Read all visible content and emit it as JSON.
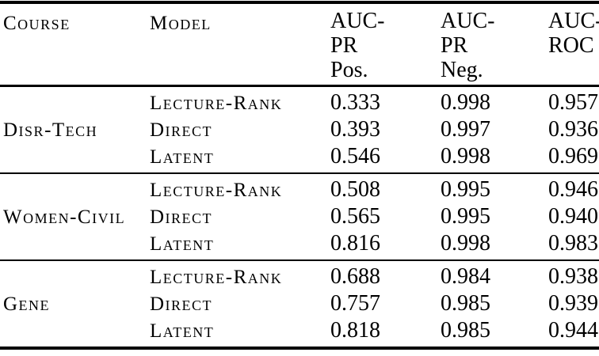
{
  "page": {
    "background": "#ffffff",
    "text_color": "#000000",
    "rule_color": "#000000"
  },
  "table": {
    "headers": {
      "course": "Course",
      "model": "Model",
      "auc_pr_pos": "AUC-\nPR\nPos.",
      "auc_pr_neg": "AUC-\nPR\nNeg.",
      "auc_roc": "AUC-\nROC"
    },
    "groups": [
      {
        "course": "Disr-Tech",
        "rows": [
          {
            "model": "Lecture-Rank",
            "auc_pr_pos": "0.333",
            "auc_pr_neg": "0.998",
            "auc_roc": "0.957"
          },
          {
            "model": "Direct",
            "auc_pr_pos": "0.393",
            "auc_pr_neg": "0.997",
            "auc_roc": "0.936"
          },
          {
            "model": "Latent",
            "auc_pr_pos": "0.546",
            "auc_pr_neg": "0.998",
            "auc_roc": "0.969"
          }
        ]
      },
      {
        "course": "Women-Civil",
        "rows": [
          {
            "model": "Lecture-Rank",
            "auc_pr_pos": "0.508",
            "auc_pr_neg": "0.995",
            "auc_roc": "0.946"
          },
          {
            "model": "Direct",
            "auc_pr_pos": "0.565",
            "auc_pr_neg": "0.995",
            "auc_roc": "0.940"
          },
          {
            "model": "Latent",
            "auc_pr_pos": "0.816",
            "auc_pr_neg": "0.998",
            "auc_roc": "0.983"
          }
        ]
      },
      {
        "course": "Gene",
        "rows": [
          {
            "model": "Lecture-Rank",
            "auc_pr_pos": "0.688",
            "auc_pr_neg": "0.984",
            "auc_roc": "0.938"
          },
          {
            "model": "Direct",
            "auc_pr_pos": "0.757",
            "auc_pr_neg": "0.985",
            "auc_roc": "0.939"
          },
          {
            "model": "Latent",
            "auc_pr_pos": "0.818",
            "auc_pr_neg": "0.985",
            "auc_roc": "0.944"
          }
        ]
      }
    ]
  },
  "chart_data": {
    "type": "table",
    "columns": [
      "Course",
      "Model",
      "AUC-PR Pos.",
      "AUC-PR Neg.",
      "AUC-ROC"
    ],
    "rows": [
      [
        "Disr-Tech",
        "Lecture-Rank",
        "0.333",
        "0.998",
        "0.957"
      ],
      [
        "Disr-Tech",
        "Direct",
        "0.393",
        "0.997",
        "0.936"
      ],
      [
        "Disr-Tech",
        "Latent",
        "0.546",
        "0.998",
        "0.969"
      ],
      [
        "Women-Civil",
        "Lecture-Rank",
        "0.508",
        "0.995",
        "0.946"
      ],
      [
        "Women-Civil",
        "Direct",
        "0.565",
        "0.995",
        "0.940"
      ],
      [
        "Women-Civil",
        "Latent",
        "0.816",
        "0.998",
        "0.983"
      ],
      [
        "Gene",
        "Lecture-Rank",
        "0.688",
        "0.984",
        "0.938"
      ],
      [
        "Gene",
        "Direct",
        "0.757",
        "0.985",
        "0.939"
      ],
      [
        "Gene",
        "Latent",
        "0.818",
        "0.985",
        "0.944"
      ]
    ]
  }
}
